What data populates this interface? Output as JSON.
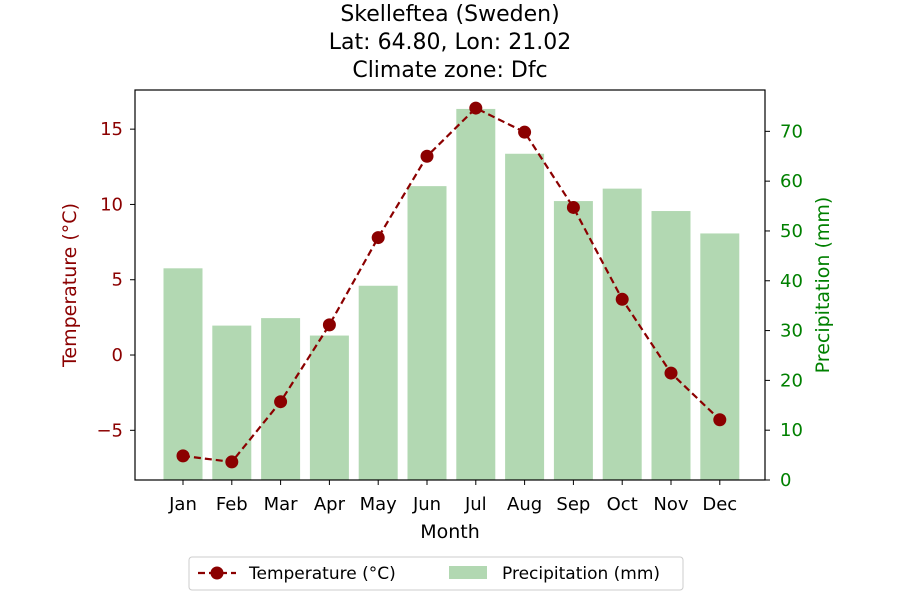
{
  "chart_data": {
    "type": "bar+line",
    "title_lines": [
      "Skelleftea (Sweden)",
      "Lat: 64.80, Lon: 21.02",
      "Climate zone: Dfc"
    ],
    "xlabel": "Month",
    "categories": [
      "Jan",
      "Feb",
      "Mar",
      "Apr",
      "May",
      "Jun",
      "Jul",
      "Aug",
      "Sep",
      "Oct",
      "Nov",
      "Dec"
    ],
    "temperature": {
      "name": "Temperature (°C)",
      "ylabel": "Temperature (°C)",
      "values": [
        -6.7,
        -7.1,
        -3.1,
        2.0,
        7.8,
        13.2,
        16.4,
        14.8,
        9.8,
        3.7,
        -1.2,
        -4.3
      ],
      "ylim": [
        -8.3,
        17.6
      ],
      "ticks": [
        -5,
        0,
        5,
        10,
        15
      ],
      "tick_labels": [
        "−5",
        "0",
        "5",
        "10",
        "15"
      ],
      "color": "#8b0000"
    },
    "precipitation": {
      "name": "Precipitation (mm)",
      "ylabel": "Precipitation (mm)",
      "values": [
        42.5,
        31.0,
        32.5,
        29.0,
        39.0,
        59.0,
        74.5,
        65.5,
        56.0,
        58.5,
        54.0,
        49.5
      ],
      "ylim": [
        0,
        78.3
      ],
      "ticks": [
        0,
        10,
        20,
        30,
        40,
        50,
        60,
        70
      ],
      "tick_labels": [
        "0",
        "10",
        "20",
        "30",
        "40",
        "50",
        "60",
        "70"
      ],
      "color": "#b2d8b2",
      "label_color": "#008000"
    },
    "legend": {
      "placement": "bottom-center",
      "entries": [
        "Temperature (°C)",
        "Precipitation (mm)"
      ]
    },
    "grid": false
  }
}
